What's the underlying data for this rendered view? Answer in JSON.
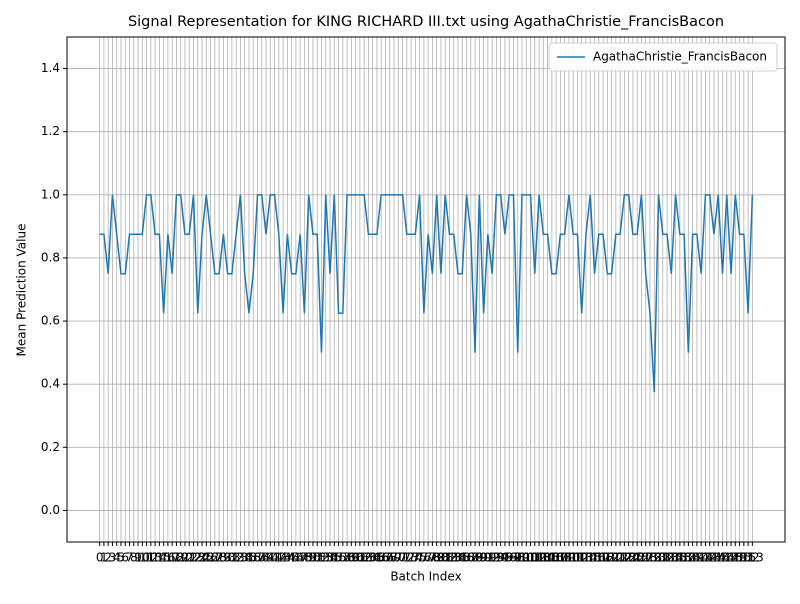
{
  "chart_data": {
    "type": "line",
    "title": "Signal Representation for KING RICHARD III.txt using AgathaChristie_FrancisBacon",
    "x_label": "Batch Index",
    "y_label": "Mean Prediction Value",
    "x": [
      0,
      1,
      2,
      3,
      4,
      5,
      6,
      7,
      8,
      9,
      10,
      11,
      12,
      13,
      14,
      15,
      16,
      17,
      18,
      19,
      20,
      21,
      22,
      23,
      24,
      25,
      26,
      27,
      28,
      29,
      30,
      31,
      32,
      33,
      34,
      35,
      36,
      37,
      38,
      39,
      40,
      41,
      42,
      43,
      44,
      45,
      46,
      47,
      48,
      49,
      50,
      51,
      52,
      53,
      54,
      55,
      56,
      57,
      58,
      59,
      60,
      61,
      62,
      63,
      64,
      65,
      66,
      67,
      68,
      69,
      70,
      71,
      72,
      73,
      74,
      75,
      76,
      77,
      78,
      79,
      80,
      81,
      82,
      83,
      84,
      85,
      86,
      87,
      88,
      89,
      90,
      91,
      92,
      93,
      94,
      95,
      96,
      97,
      98,
      99,
      100,
      101,
      102,
      103,
      104,
      105,
      106,
      107,
      108,
      109,
      110,
      111,
      112,
      113,
      114,
      115,
      116,
      117,
      118,
      119,
      120,
      121,
      122,
      123,
      124,
      125,
      126,
      127,
      128,
      129,
      130,
      131,
      132,
      133,
      134,
      135,
      136,
      137,
      138,
      139,
      140,
      141,
      142,
      143,
      144,
      145,
      146,
      147,
      148,
      149,
      150,
      151,
      152,
      153
    ],
    "series": [
      {
        "name": "AgathaChristie_FrancisBacon",
        "color": "#1f77b4",
        "values": [
          0.875,
          0.875,
          0.75,
          1,
          0.875,
          0.75,
          0.75,
          0.875,
          0.875,
          0.875,
          0.875,
          1,
          1,
          0.875,
          0.875,
          0.625,
          0.875,
          0.75,
          1,
          1,
          0.875,
          0.875,
          1,
          0.625,
          0.875,
          1,
          0.875,
          0.75,
          0.75,
          0.875,
          0.75,
          0.75,
          0.875,
          1,
          0.75,
          0.625,
          0.75,
          1,
          1,
          0.875,
          1,
          1,
          0.875,
          0.625,
          0.875,
          0.75,
          0.75,
          0.875,
          0.625,
          1,
          0.875,
          0.875,
          0.5,
          1,
          0.75,
          1,
          0.625,
          0.625,
          1,
          1,
          1,
          1,
          1,
          0.875,
          0.875,
          0.875,
          1,
          1,
          1,
          1,
          1,
          1,
          0.875,
          0.875,
          0.875,
          1,
          0.625,
          0.875,
          0.75,
          1,
          0.75,
          1,
          0.875,
          0.875,
          0.75,
          0.75,
          1,
          0.875,
          0.5,
          1,
          0.625,
          0.875,
          0.75,
          1,
          1,
          0.875,
          1,
          1,
          0.5,
          1,
          1,
          1,
          0.75,
          1,
          0.875,
          0.875,
          0.75,
          0.75,
          0.875,
          0.875,
          1,
          0.875,
          0.875,
          0.625,
          0.875,
          1,
          0.75,
          0.875,
          0.875,
          0.75,
          0.75,
          0.875,
          0.875,
          1,
          1,
          0.875,
          0.875,
          1,
          0.75,
          0.625,
          0.375,
          1,
          0.875,
          0.875,
          0.75,
          1,
          0.875,
          0.875,
          0.5,
          0.875,
          0.875,
          0.75,
          1,
          1,
          0.875,
          1,
          0.75,
          1,
          0.75,
          1,
          0.875,
          0.875,
          0.625,
          1
        ]
      }
    ],
    "xlim": [
      -7.65,
      160.65
    ],
    "xticks": [
      0,
      1,
      2,
      3,
      4,
      5,
      6,
      7,
      8,
      9,
      10,
      11,
      12,
      13,
      14,
      15,
      16,
      17,
      18,
      19,
      20,
      21,
      22,
      23,
      24,
      25,
      26,
      27,
      28,
      29,
      30,
      31,
      32,
      33,
      34,
      35,
      36,
      37,
      38,
      39,
      40,
      41,
      42,
      43,
      44,
      45,
      46,
      47,
      48,
      49,
      50,
      51,
      52,
      53,
      54,
      55,
      56,
      57,
      58,
      59,
      60,
      61,
      62,
      63,
      64,
      65,
      66,
      67,
      68,
      69,
      70,
      71,
      72,
      73,
      74,
      75,
      76,
      77,
      78,
      79,
      80,
      81,
      82,
      83,
      84,
      85,
      86,
      87,
      88,
      89,
      90,
      91,
      92,
      93,
      94,
      95,
      96,
      97,
      98,
      99,
      100,
      101,
      102,
      103,
      104,
      105,
      106,
      107,
      108,
      109,
      110,
      111,
      112,
      113,
      114,
      115,
      116,
      117,
      118,
      119,
      120,
      121,
      122,
      123,
      124,
      125,
      126,
      127,
      128,
      129,
      130,
      131,
      132,
      133,
      134,
      135,
      136,
      137,
      138,
      139,
      140,
      141,
      142,
      143,
      144,
      145,
      146,
      147,
      148,
      149,
      150,
      151,
      152,
      153
    ],
    "ylim": [
      -0.1,
      1.5
    ],
    "yticks": [
      {
        "value": 0,
        "label": "0.0"
      },
      0.2,
      0.4,
      0.6,
      0.8,
      {
        "value": 1,
        "label": "1.0"
      },
      1.2,
      1.4
    ],
    "grid": true,
    "legend": "upper right"
  }
}
